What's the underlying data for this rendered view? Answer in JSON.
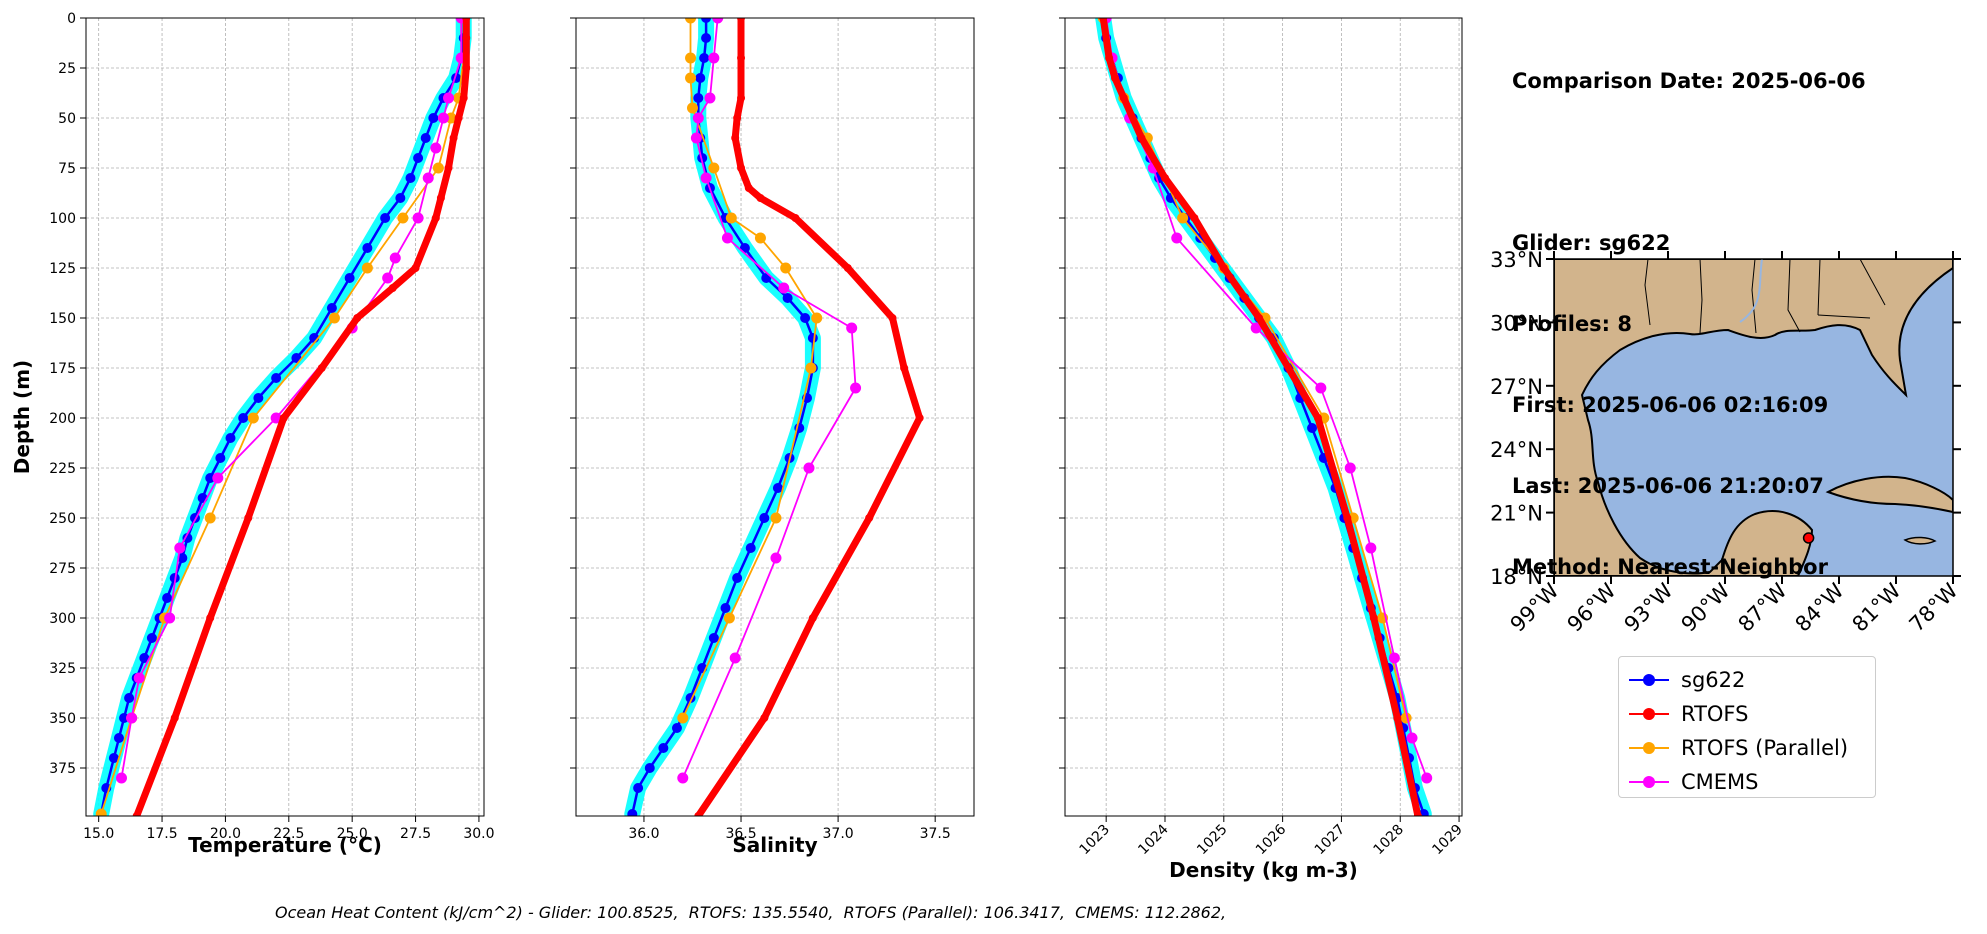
{
  "colors": {
    "glider": "#0000ff",
    "glider_band": "#00ffff",
    "rtofs": "#ff0000",
    "rtofs_parallel": "#ffa500",
    "cmems": "#ff00ff",
    "land": "#d2b48c",
    "ocean": "#97b6e1"
  },
  "info_panel": {
    "lines": [
      "Comparison Date: 2025-06-06",
      "",
      "Glider: sg622",
      "Profiles: 8",
      "First: 2025-06-06 02:16:09",
      "Last: 2025-06-06 21:20:07",
      "Method: Nearest-Neighbor"
    ]
  },
  "legend": {
    "entries": [
      "sg622",
      "RTOFS",
      "RTOFS (Parallel)",
      "CMEMS"
    ]
  },
  "footer": {
    "text": "Ocean Heat Content (kJ/cm^2) - Glider: 100.8525,  RTOFS: 135.5540,  RTOFS (Parallel): 106.3417,  CMEMS: 112.2862,"
  },
  "chart_data": [
    {
      "type": "line",
      "xlabel": "Temperature (°C)",
      "ylabel": "Depth (m)",
      "xlim": [
        14.5,
        30.2
      ],
      "ylim": [
        399,
        0
      ],
      "xticks": [
        "15.0",
        "17.5",
        "20.0",
        "22.5",
        "25.0",
        "27.5",
        "30.0"
      ],
      "yticks": [
        "0",
        "25",
        "50",
        "75",
        "100",
        "125",
        "150",
        "175",
        "200",
        "225",
        "250",
        "275",
        "300",
        "325",
        "350",
        "375"
      ],
      "grid": true,
      "series": [
        {
          "name": "sg622",
          "color_key": "glider",
          "x": [
            29.4,
            29.4,
            29.3,
            29.1,
            28.6,
            28.2,
            27.9,
            27.6,
            27.3,
            26.9,
            26.3,
            25.6,
            24.9,
            24.2,
            23.5,
            22.8,
            22.0,
            21.3,
            20.7,
            20.2,
            19.8,
            19.4,
            19.1,
            18.8,
            18.5,
            18.3,
            18.0,
            17.7,
            17.4,
            17.1,
            16.8,
            16.5,
            16.2,
            16.0,
            15.8,
            15.6,
            15.3,
            15.1
          ],
          "y": [
            0,
            10,
            20,
            30,
            40,
            50,
            60,
            70,
            80,
            90,
            100,
            115,
            130,
            145,
            160,
            170,
            180,
            190,
            200,
            210,
            220,
            230,
            240,
            250,
            260,
            270,
            280,
            290,
            300,
            310,
            320,
            330,
            340,
            350,
            360,
            370,
            385,
            398
          ]
        },
        {
          "name": "RTOFS",
          "color_key": "rtofs",
          "x": [
            29.5,
            29.5,
            29.5,
            29.4,
            29.2,
            29.0,
            28.8,
            28.5,
            28.3,
            27.5,
            26.6,
            25.2,
            23.8,
            22.3,
            20.9,
            19.4,
            18.0,
            16.5
          ],
          "y": [
            0,
            10,
            25,
            40,
            50,
            60,
            75,
            90,
            100,
            125,
            135,
            150,
            175,
            200,
            250,
            300,
            350,
            399
          ]
        },
        {
          "name": "RTOFS (Parallel)",
          "color_key": "rtofs_parallel",
          "x": [
            29.4,
            29.4,
            29.2,
            28.9,
            28.4,
            27.0,
            25.6,
            24.3,
            21.1,
            19.4,
            17.6,
            16.3,
            15.1
          ],
          "y": [
            0,
            20,
            40,
            50,
            75,
            100,
            125,
            150,
            200,
            250,
            300,
            350,
            398
          ]
        },
        {
          "name": "CMEMS",
          "color_key": "cmems",
          "x": [
            29.3,
            29.3,
            28.8,
            28.6,
            28.3,
            28.0,
            27.6,
            26.7,
            26.4,
            25.0,
            22.0,
            19.7,
            18.2,
            17.8,
            16.6,
            16.3,
            15.9
          ],
          "y": [
            0,
            20,
            40,
            50,
            65,
            80,
            100,
            120,
            130,
            155,
            200,
            230,
            265,
            300,
            330,
            350,
            380
          ]
        }
      ]
    },
    {
      "type": "line",
      "xlabel": "Salinity",
      "xlim": [
        35.65,
        37.7
      ],
      "ylim": [
        399,
        0
      ],
      "xticks": [
        "36.0",
        "36.5",
        "37.0",
        "37.5"
      ],
      "grid": true,
      "series": [
        {
          "name": "sg622",
          "color_key": "glider",
          "x": [
            36.32,
            36.32,
            36.31,
            36.29,
            36.28,
            36.28,
            36.29,
            36.3,
            36.34,
            36.42,
            36.52,
            36.63,
            36.74,
            36.83,
            36.87,
            36.87,
            36.84,
            36.8,
            36.75,
            36.69,
            36.62,
            36.55,
            36.48,
            36.42,
            36.36,
            36.3,
            36.24,
            36.17,
            36.1,
            36.03,
            35.97,
            35.94
          ],
          "y": [
            0,
            10,
            20,
            30,
            40,
            50,
            60,
            70,
            85,
            100,
            115,
            130,
            140,
            150,
            160,
            175,
            190,
            205,
            220,
            235,
            250,
            265,
            280,
            295,
            310,
            325,
            340,
            355,
            365,
            375,
            385,
            398
          ]
        },
        {
          "name": "RTOFS",
          "color_key": "rtofs",
          "x": [
            36.5,
            36.5,
            36.5,
            36.48,
            36.47,
            36.5,
            36.54,
            36.6,
            36.78,
            37.05,
            37.28,
            37.34,
            37.42,
            37.16,
            36.87,
            36.62,
            36.28
          ],
          "y": [
            0,
            20,
            40,
            50,
            60,
            75,
            85,
            90,
            100,
            125,
            150,
            175,
            200,
            250,
            300,
            350,
            399
          ]
        },
        {
          "name": "RTOFS (Parallel)",
          "color_key": "rtofs_parallel",
          "x": [
            36.24,
            36.24,
            36.24,
            36.25,
            36.36,
            36.45,
            36.6,
            36.73,
            36.89,
            36.86,
            36.68,
            36.44,
            36.2
          ],
          "y": [
            0,
            20,
            30,
            45,
            75,
            100,
            110,
            125,
            150,
            175,
            250,
            300,
            350
          ]
        },
        {
          "name": "CMEMS",
          "color_key": "cmems",
          "x": [
            36.38,
            36.36,
            36.34,
            36.28,
            36.27,
            36.32,
            36.43,
            36.72,
            37.07,
            37.09,
            36.85,
            36.68,
            36.47,
            36.2
          ],
          "y": [
            0,
            20,
            40,
            50,
            60,
            80,
            110,
            135,
            155,
            185,
            225,
            270,
            320,
            380
          ]
        }
      ]
    },
    {
      "type": "line",
      "xlabel": "Density (kg m-3)",
      "xlim": [
        1022.3,
        1029.05
      ],
      "ylim": [
        399,
        0
      ],
      "xticks": [
        "1023",
        "1024",
        "1025",
        "1026",
        "1027",
        "1028",
        "1029"
      ],
      "grid": true,
      "series": [
        {
          "name": "sg622",
          "color_key": "glider",
          "x": [
            1022.95,
            1023.0,
            1023.1,
            1023.2,
            1023.3,
            1023.45,
            1023.6,
            1023.75,
            1023.9,
            1024.1,
            1024.35,
            1024.6,
            1024.85,
            1025.1,
            1025.35,
            1025.6,
            1025.85,
            1026.1,
            1026.3,
            1026.5,
            1026.7,
            1026.9,
            1027.05,
            1027.2,
            1027.35,
            1027.5,
            1027.65,
            1027.8,
            1027.95,
            1028.05,
            1028.15,
            1028.25,
            1028.4
          ],
          "y": [
            0,
            10,
            20,
            30,
            40,
            50,
            60,
            70,
            80,
            90,
            100,
            110,
            120,
            130,
            140,
            150,
            160,
            175,
            190,
            205,
            220,
            235,
            250,
            265,
            280,
            295,
            310,
            325,
            340,
            355,
            370,
            385,
            398
          ]
        },
        {
          "name": "RTOFS",
          "color_key": "rtofs",
          "x": [
            1022.95,
            1023.05,
            1023.15,
            1023.3,
            1023.6,
            1024.0,
            1024.5,
            1025.0,
            1025.6,
            1026.6,
            1027.1,
            1027.55,
            1027.95,
            1028.3
          ],
          "y": [
            0,
            20,
            30,
            40,
            60,
            80,
            100,
            125,
            150,
            200,
            250,
            300,
            350,
            399
          ]
        },
        {
          "name": "RTOFS (Parallel)",
          "color_key": "rtofs_parallel",
          "x": [
            1022.95,
            1023.1,
            1023.3,
            1023.7,
            1024.3,
            1025.0,
            1025.7,
            1026.7,
            1027.2,
            1027.7,
            1028.1
          ],
          "y": [
            0,
            20,
            40,
            60,
            100,
            125,
            150,
            200,
            250,
            300,
            350
          ]
        },
        {
          "name": "CMEMS",
          "color_key": "cmems",
          "x": [
            1023.0,
            1023.1,
            1023.4,
            1023.8,
            1024.2,
            1025.55,
            1026.65,
            1027.15,
            1027.5,
            1027.9,
            1028.2,
            1028.45
          ],
          "y": [
            0,
            20,
            50,
            75,
            110,
            155,
            185,
            225,
            265,
            320,
            360,
            380
          ]
        }
      ]
    },
    {
      "type": "map",
      "region": "Gulf of Mexico",
      "lat_ticks": [
        "18°N",
        "21°N",
        "24°N",
        "27°N",
        "30°N",
        "33°N"
      ],
      "lon_ticks": [
        "99°W",
        "96°W",
        "93°W",
        "90°W",
        "87°W",
        "84°W",
        "81°W",
        "78°W"
      ],
      "lat_range": [
        18,
        33
      ],
      "lon_range": [
        -99,
        -78
      ],
      "glider_position": {
        "lat": 19.8,
        "lon": -85.6
      }
    }
  ]
}
